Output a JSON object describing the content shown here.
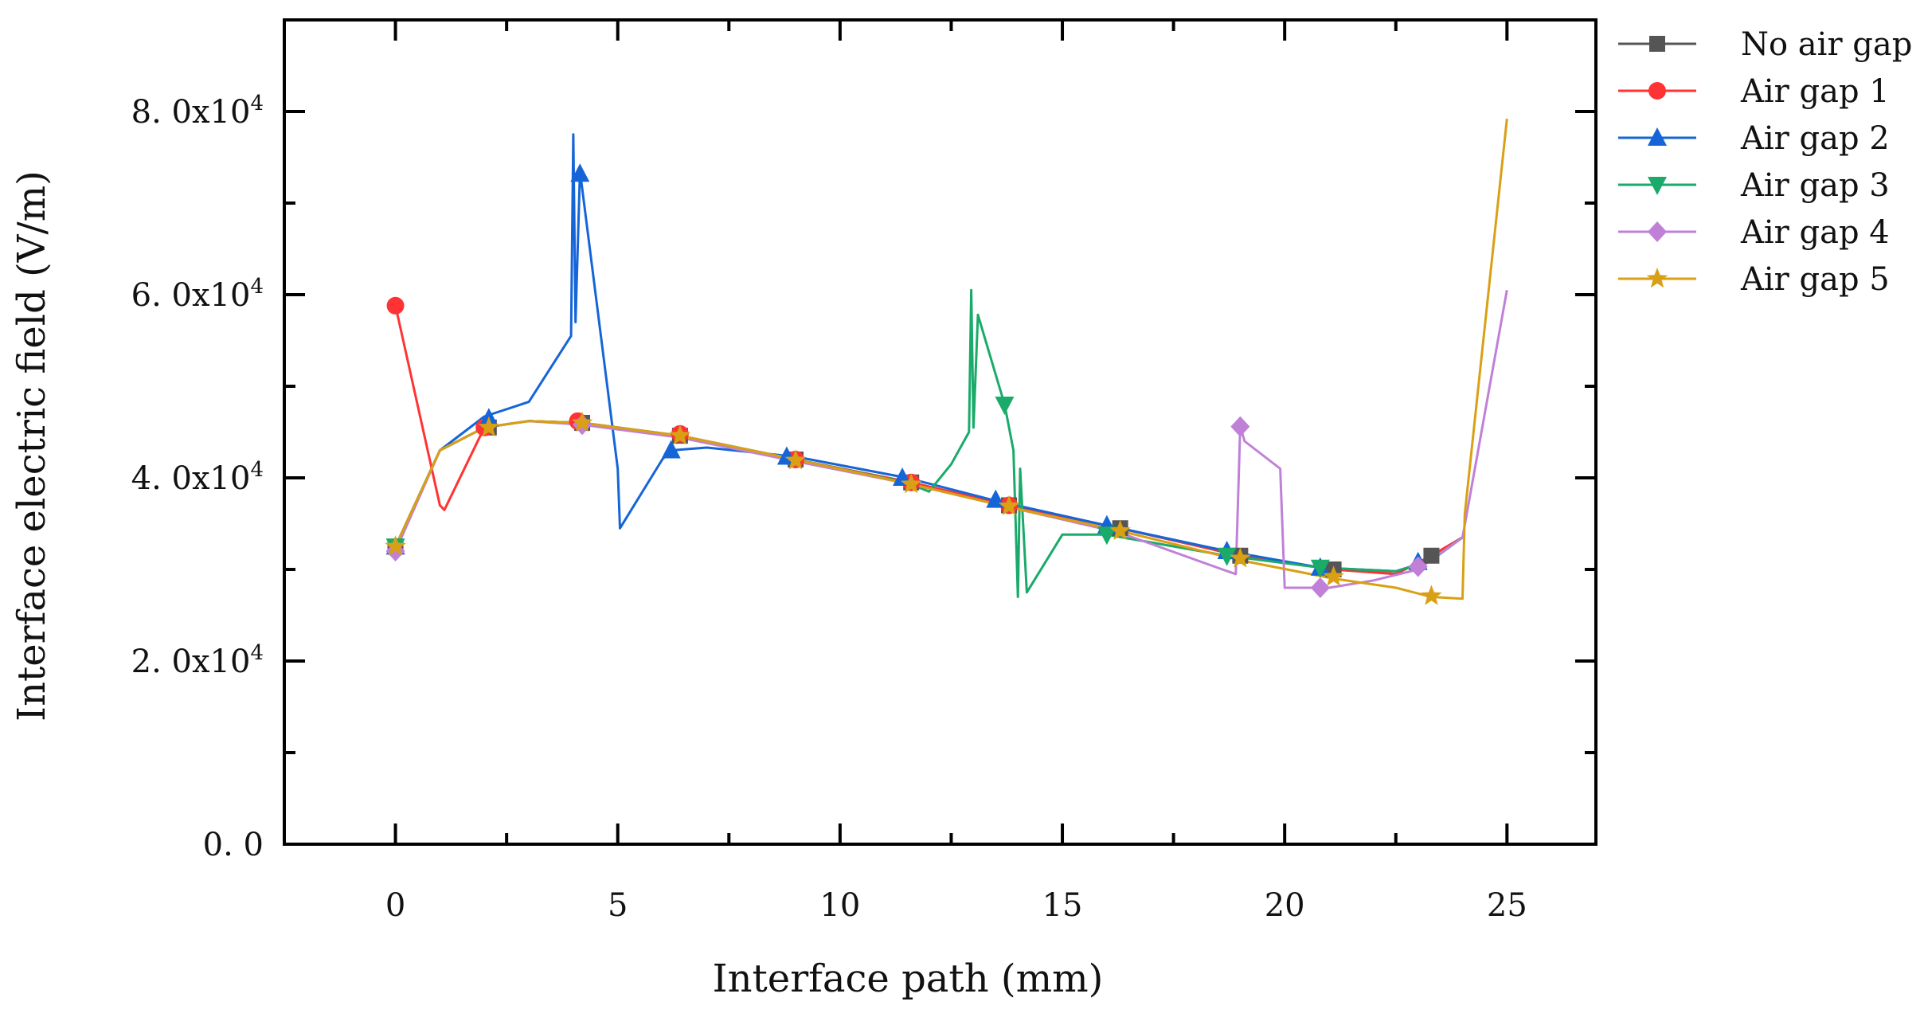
{
  "chart_data": {
    "type": "line",
    "xlabel": "Interface path (mm)",
    "ylabel": "Interface electric field (V/m)",
    "xlim": [
      -2.5,
      27.0
    ],
    "ylim": [
      0,
      90000
    ],
    "x_ticks": [
      0,
      5,
      10,
      15,
      20,
      25
    ],
    "x_tick_labels": [
      "0",
      "5",
      "10",
      "15",
      "20",
      "25"
    ],
    "y_ticks": [
      0,
      20000,
      40000,
      60000,
      80000
    ],
    "y_tick_labels": [
      {
        "base": "0. 0",
        "exp": ""
      },
      {
        "base": "2. 0x10",
        "exp": "4"
      },
      {
        "base": "4. 0x10",
        "exp": "4"
      },
      {
        "base": "6. 0x10",
        "exp": "4"
      },
      {
        "base": "8. 0x10",
        "exp": "4"
      }
    ],
    "legend_position": "top-right",
    "series": [
      {
        "name": "No air gap",
        "color": "#555555",
        "marker": "square",
        "line": [
          [
            0,
            32500
          ],
          [
            1,
            43000
          ],
          [
            2,
            45500
          ],
          [
            3,
            46200
          ],
          [
            4.2,
            46000
          ],
          [
            6.4,
            44600
          ],
          [
            9,
            42000
          ],
          [
            11.6,
            39500
          ],
          [
            13.8,
            37000
          ],
          [
            16.3,
            34500
          ],
          [
            19,
            31500
          ],
          [
            21.1,
            30000
          ],
          [
            22.5,
            29500
          ],
          [
            23.3,
            31500
          ],
          [
            24,
            33500
          ]
        ],
        "markers": [
          [
            0,
            32500
          ],
          [
            2.1,
            45500
          ],
          [
            4.2,
            46000
          ],
          [
            6.4,
            44600
          ],
          [
            9,
            42000
          ],
          [
            11.6,
            39500
          ],
          [
            13.8,
            37000
          ],
          [
            16.3,
            34500
          ],
          [
            19,
            31500
          ],
          [
            21.1,
            30000
          ],
          [
            23.3,
            31500
          ]
        ]
      },
      {
        "name": "Air gap 1",
        "color": "#ff3333",
        "marker": "circle",
        "line": [
          [
            0,
            58800
          ],
          [
            1,
            37000
          ],
          [
            1.1,
            36500
          ],
          [
            2,
            45500
          ],
          [
            3,
            46200
          ],
          [
            4.2,
            46000
          ],
          [
            6.4,
            44600
          ],
          [
            9,
            42000
          ],
          [
            11.6,
            39500
          ],
          [
            13.8,
            37000
          ],
          [
            16.3,
            34500
          ],
          [
            19,
            31500
          ],
          [
            21.1,
            30000
          ],
          [
            22.5,
            29500
          ],
          [
            23.3,
            31500
          ],
          [
            24,
            33500
          ]
        ],
        "markers": [
          [
            0,
            58800
          ],
          [
            2,
            45500
          ],
          [
            4.1,
            46200
          ],
          [
            6.4,
            44800
          ],
          [
            9,
            42000
          ],
          [
            11.6,
            39500
          ],
          [
            13.8,
            37000
          ]
        ]
      },
      {
        "name": "Air gap 2",
        "color": "#1565d8",
        "marker": "triangle-up",
        "line": [
          [
            0,
            32500
          ],
          [
            1,
            43000
          ],
          [
            2,
            46700
          ],
          [
            3,
            48300
          ],
          [
            3.95,
            55500
          ],
          [
            4.0,
            77500
          ],
          [
            4.05,
            57000
          ],
          [
            4.15,
            73500
          ],
          [
            5,
            41000
          ],
          [
            5.05,
            34500
          ],
          [
            6,
            42000
          ],
          [
            6.2,
            43000
          ],
          [
            7,
            43300
          ],
          [
            9,
            42300
          ],
          [
            11.5,
            40000
          ],
          [
            13.5,
            37500
          ],
          [
            16,
            34800
          ],
          [
            18.7,
            32000
          ],
          [
            20.8,
            30200
          ],
          [
            22.5,
            29800
          ],
          [
            23.3,
            31000
          ],
          [
            24,
            33500
          ]
        ],
        "markers": [
          [
            0,
            32500
          ],
          [
            2.1,
            46500
          ],
          [
            4.15,
            73200
          ],
          [
            6.2,
            43000
          ],
          [
            8.8,
            42300
          ],
          [
            11.4,
            40000
          ],
          [
            13.5,
            37600
          ],
          [
            16,
            34800
          ],
          [
            18.7,
            32000
          ],
          [
            20.8,
            30200
          ],
          [
            23,
            30800
          ]
        ]
      },
      {
        "name": "Air gap 3",
        "color": "#1aaa6a",
        "marker": "triangle-down",
        "line": [
          [
            0,
            32500
          ],
          [
            1,
            43000
          ],
          [
            2,
            45500
          ],
          [
            3,
            46200
          ],
          [
            4.2,
            46000
          ],
          [
            6.4,
            44600
          ],
          [
            9,
            42000
          ],
          [
            11.5,
            39500
          ],
          [
            12,
            38500
          ],
          [
            12.5,
            41500
          ],
          [
            12.9,
            45000
          ],
          [
            12.95,
            60500
          ],
          [
            13.0,
            45500
          ],
          [
            13.1,
            57800
          ],
          [
            13.7,
            48000
          ],
          [
            13.9,
            43000
          ],
          [
            14.0,
            27000
          ],
          [
            14.05,
            41000
          ],
          [
            14.2,
            27500
          ],
          [
            15,
            33800
          ],
          [
            16,
            33800
          ],
          [
            18.7,
            31500
          ],
          [
            20.8,
            30200
          ],
          [
            22.5,
            29800
          ],
          [
            23.3,
            31000
          ],
          [
            24,
            33500
          ]
        ],
        "markers": [
          [
            0,
            32500
          ],
          [
            13.7,
            48000
          ],
          [
            16,
            33800
          ],
          [
            18.7,
            31500
          ],
          [
            20.8,
            30200
          ]
        ]
      },
      {
        "name": "Air gap 4",
        "color": "#c080d8",
        "marker": "diamond",
        "line": [
          [
            0,
            32000
          ],
          [
            1,
            43000
          ],
          [
            2,
            45500
          ],
          [
            3,
            46200
          ],
          [
            4.2,
            45800
          ],
          [
            6.4,
            44400
          ],
          [
            9,
            41800
          ],
          [
            11.6,
            39300
          ],
          [
            13.8,
            36800
          ],
          [
            16.3,
            34000
          ],
          [
            18.6,
            30000
          ],
          [
            18.9,
            29500
          ],
          [
            19.0,
            45600
          ],
          [
            19.1,
            44000
          ],
          [
            19.9,
            41000
          ],
          [
            20.0,
            28000
          ],
          [
            21,
            28000
          ],
          [
            22,
            28800
          ],
          [
            23,
            30000
          ],
          [
            24,
            33500
          ],
          [
            25,
            60500
          ]
        ],
        "markers": [
          [
            0,
            32000
          ],
          [
            4.2,
            45800
          ],
          [
            19,
            45600
          ],
          [
            20.8,
            28000
          ],
          [
            23,
            30300
          ]
        ]
      },
      {
        "name": "Air gap 5",
        "color": "#d9a015",
        "marker": "star",
        "line": [
          [
            0,
            32500
          ],
          [
            1,
            43000
          ],
          [
            2,
            45500
          ],
          [
            3,
            46200
          ],
          [
            4.2,
            46000
          ],
          [
            6.4,
            44600
          ],
          [
            9,
            42000
          ],
          [
            11.6,
            39300
          ],
          [
            13.8,
            36800
          ],
          [
            16.3,
            34200
          ],
          [
            19,
            31000
          ],
          [
            21.1,
            29000
          ],
          [
            22.5,
            28000
          ],
          [
            23.3,
            27000
          ],
          [
            24,
            26800
          ],
          [
            24.05,
            36000
          ],
          [
            25,
            79200
          ]
        ],
        "markers": [
          [
            0,
            32500
          ],
          [
            2.1,
            45500
          ],
          [
            4.2,
            46000
          ],
          [
            6.4,
            44600
          ],
          [
            9,
            41900
          ],
          [
            11.6,
            39300
          ],
          [
            13.8,
            36900
          ],
          [
            16.3,
            34200
          ],
          [
            19,
            31200
          ],
          [
            21.1,
            29200
          ],
          [
            23.3,
            27100
          ]
        ]
      }
    ]
  }
}
